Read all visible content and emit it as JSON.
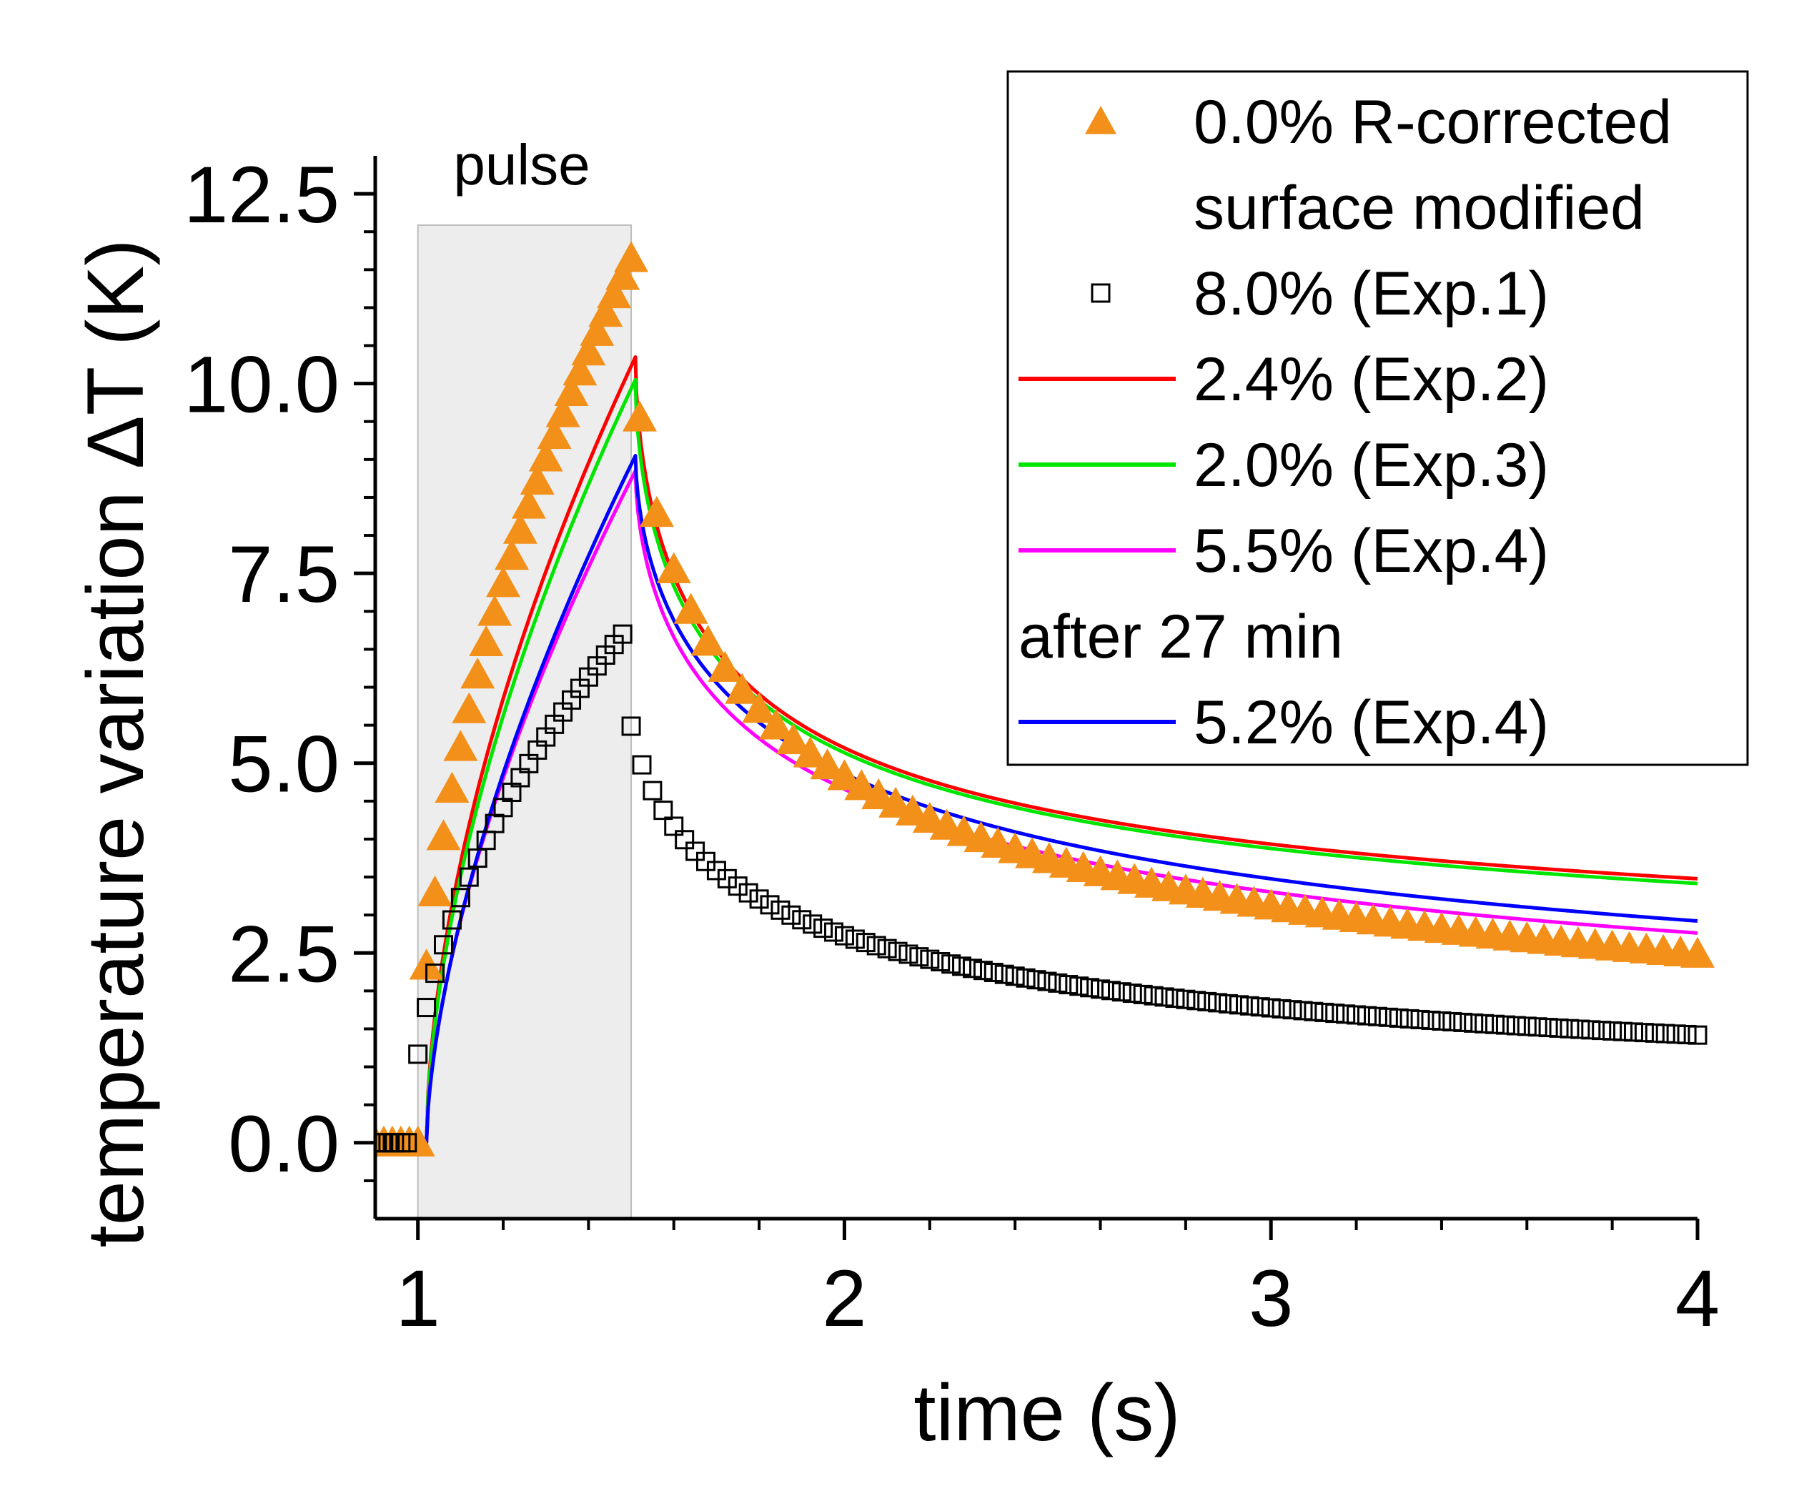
{
  "chart_data": {
    "type": "line",
    "title": "",
    "xlabel": "time (s)",
    "ylabel": "temperature variation ΔT (K)",
    "xlim": [
      0.9,
      4.0
    ],
    "ylim": [
      -1.0,
      13.0
    ],
    "x_ticks": [
      1,
      2,
      3,
      4
    ],
    "x_tick_labels": [
      "1",
      "2",
      "3",
      "4"
    ],
    "y_ticks": [
      0.0,
      2.5,
      5.0,
      7.5,
      10.0,
      12.5
    ],
    "y_tick_labels": [
      "0.0",
      "2.5",
      "5.0",
      "7.5",
      "10.0",
      "12.5"
    ],
    "grid": false,
    "legend_position": "top-right",
    "pulse": {
      "label": "pulse",
      "x_start": 1.0,
      "x_end": 1.5,
      "color": "#ededed"
    },
    "legend_entries": [
      {
        "series": "s0",
        "label": "0.0% R-corrected"
      },
      {
        "series": null,
        "label": "surface modified"
      },
      {
        "series": "s1",
        "label": "8.0% (Exp.1)"
      },
      {
        "series": "s2",
        "label": "2.4% (Exp.2)"
      },
      {
        "series": "s3",
        "label": "2.0% (Exp.3)"
      },
      {
        "series": "s4",
        "label": "5.5% (Exp.4)"
      },
      {
        "series": null,
        "label": "after 27 min"
      },
      {
        "series": "s5",
        "label": "5.2% (Exp.4)"
      }
    ],
    "series": [
      {
        "id": "s0",
        "name": "0.0% R-corrected",
        "style": "triangle",
        "color": "#f39019",
        "model": {
          "t_on": 1.0,
          "t_off": 1.5,
          "A": 11.65,
          "p": 0.5,
          "bulk": 0.0,
          "y0": 0.0
        },
        "x_before": [
          0.9,
          0.92,
          0.94,
          0.96,
          0.98,
          1.0
        ],
        "x_pulse": [
          1.02,
          1.04,
          1.06,
          1.08,
          1.1,
          1.12,
          1.14,
          1.16,
          1.18,
          1.2,
          1.22,
          1.24,
          1.26,
          1.28,
          1.3,
          1.32,
          1.34,
          1.36,
          1.38,
          1.4,
          1.42,
          1.44,
          1.46,
          1.48,
          1.5
        ],
        "x_decay": {
          "start": 1.52,
          "end": 4.0,
          "step": 0.04
        },
        "markers_y_values": "computed from model"
      },
      {
        "id": "s1",
        "name": "8.0% (Exp.1)",
        "style": "square",
        "color": "#000000",
        "model": {
          "t_on": 0.985,
          "t_off": 1.48,
          "A": 6.7,
          "p": 0.5,
          "bulk": 0.0,
          "y0": 0.0
        },
        "x_before": [
          0.9,
          0.915,
          0.93,
          0.945,
          0.96,
          0.975
        ],
        "x_pulse": [
          1.0,
          1.02,
          1.04,
          1.06,
          1.08,
          1.1,
          1.12,
          1.14,
          1.16,
          1.18,
          1.2,
          1.22,
          1.24,
          1.26,
          1.28,
          1.3,
          1.32,
          1.34,
          1.36,
          1.38,
          1.4,
          1.42,
          1.44,
          1.46,
          1.48
        ],
        "x_decay": {
          "start": 1.5,
          "end": 4.0,
          "step": 0.025
        },
        "markers_y_values": "computed from model"
      },
      {
        "id": "s2",
        "name": "2.4% (Exp.2)",
        "style": "line",
        "color": "#ff0000",
        "model": {
          "t_on": 1.02,
          "t_off": 1.51,
          "A": 10.35,
          "p": 0.57,
          "bulk": 0.85,
          "y0": 0.0
        }
      },
      {
        "id": "s3",
        "name": "2.0% (Exp.3)",
        "style": "line",
        "color": "#00e600",
        "model": {
          "t_on": 1.02,
          "t_off": 1.51,
          "A": 10.05,
          "p": 0.58,
          "bulk": 0.75,
          "y0": 0.0
        }
      },
      {
        "id": "s4",
        "name": "5.5% (Exp.4)",
        "style": "line",
        "color": "#ff00ff",
        "model": {
          "t_on": 1.02,
          "t_off": 1.51,
          "A": 8.85,
          "p": 0.61,
          "bulk": 0.0,
          "y0": 0.0
        }
      },
      {
        "id": "s5",
        "name": "5.2% (Exp.4)",
        "style": "line",
        "color": "#0000ff",
        "model": {
          "t_on": 1.02,
          "t_off": 1.51,
          "A": 9.05,
          "p": 0.62,
          "bulk": 0.0,
          "y0": 0.0
        }
      }
    ]
  }
}
